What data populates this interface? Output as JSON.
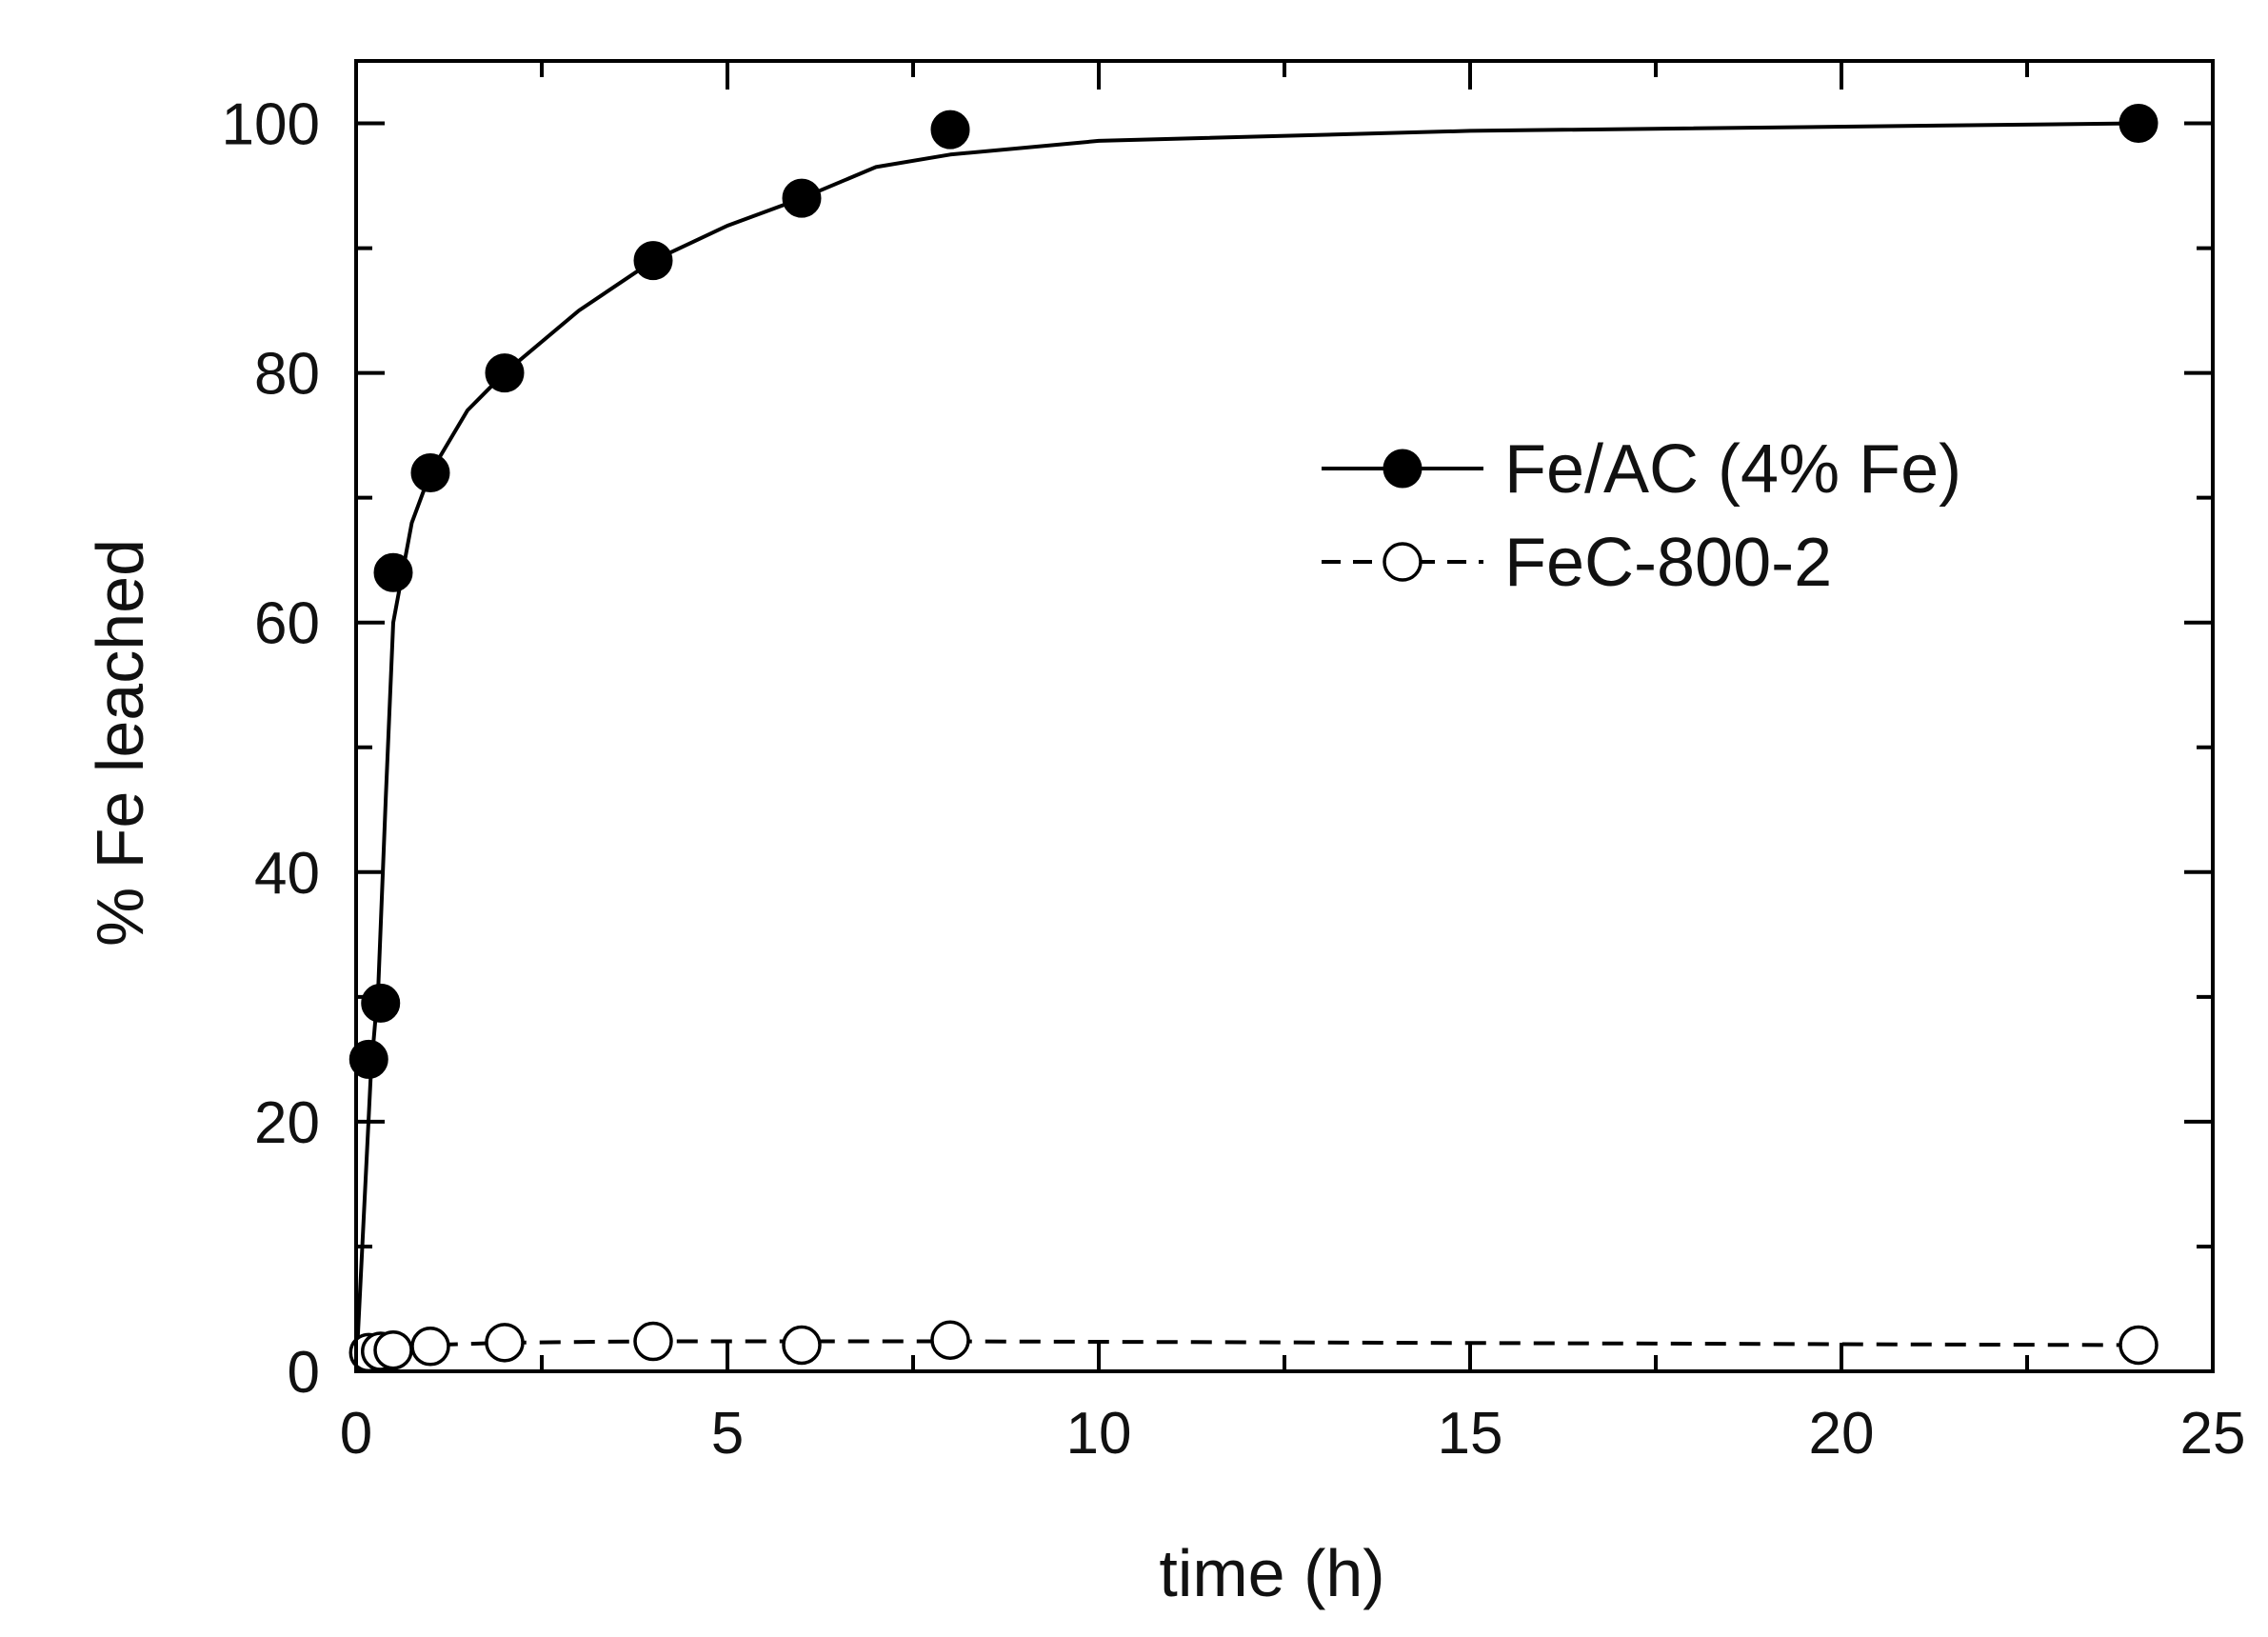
{
  "chart_data": {
    "type": "scatter",
    "title": "",
    "xlabel": "time (h)",
    "ylabel": "% Fe leached",
    "xlim": [
      0,
      25
    ],
    "ylim": [
      0,
      105
    ],
    "xticks": [
      0,
      5,
      10,
      15,
      20,
      25
    ],
    "yticks": [
      0,
      20,
      40,
      60,
      80,
      100
    ],
    "grid": false,
    "legend_position": "right",
    "series": [
      {
        "name": "Fe/AC (4% Fe)",
        "marker": "filled-circle",
        "line": "solid",
        "color": "#000000",
        "points": [
          {
            "x": 0.17,
            "y": 25
          },
          {
            "x": 0.33,
            "y": 29.5
          },
          {
            "x": 0.5,
            "y": 64
          },
          {
            "x": 1,
            "y": 72
          },
          {
            "x": 2,
            "y": 80
          },
          {
            "x": 4,
            "y": 89
          },
          {
            "x": 6,
            "y": 94
          },
          {
            "x": 8,
            "y": 99.5
          },
          {
            "x": 24,
            "y": 100
          }
        ],
        "fit_curve": [
          [
            0,
            0
          ],
          [
            0.1,
            12
          ],
          [
            0.2,
            24
          ],
          [
            0.3,
            31
          ],
          [
            0.4,
            46
          ],
          [
            0.5,
            60
          ],
          [
            0.75,
            68
          ],
          [
            1,
            72
          ],
          [
            1.5,
            77
          ],
          [
            2,
            80
          ],
          [
            3,
            85
          ],
          [
            4,
            89
          ],
          [
            5,
            91.8
          ],
          [
            6,
            94
          ],
          [
            7,
            96.5
          ],
          [
            8,
            97.5
          ],
          [
            10,
            98.6
          ],
          [
            15,
            99.4
          ],
          [
            24,
            100
          ]
        ]
      },
      {
        "name": "FeC-800-2",
        "marker": "open-circle",
        "line": "dashed",
        "color": "#000000",
        "points": [
          {
            "x": 0.17,
            "y": 1.5
          },
          {
            "x": 0.33,
            "y": 1.6
          },
          {
            "x": 0.5,
            "y": 1.7
          },
          {
            "x": 1,
            "y": 2
          },
          {
            "x": 2,
            "y": 2.3
          },
          {
            "x": 4,
            "y": 2.4
          },
          {
            "x": 6,
            "y": 2.1
          },
          {
            "x": 8,
            "y": 2.5
          },
          {
            "x": 24,
            "y": 2.1
          }
        ],
        "fit_curve": [
          [
            0.17,
            1.5
          ],
          [
            0.5,
            1.8
          ],
          [
            1,
            2.1
          ],
          [
            2,
            2.3
          ],
          [
            4,
            2.4
          ],
          [
            8,
            2.4
          ],
          [
            24,
            2.1
          ]
        ]
      }
    ]
  }
}
